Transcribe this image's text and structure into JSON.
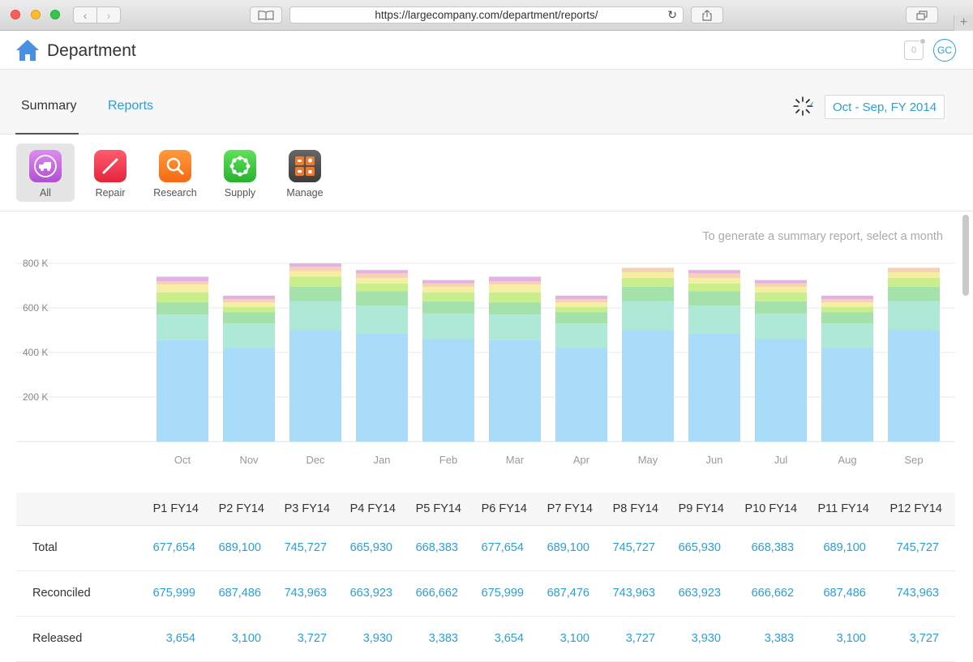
{
  "browser": {
    "url": "https://largecompany.com/department/reports/"
  },
  "app": {
    "title": "Department",
    "notification_count": "0",
    "avatar_initials": "GC"
  },
  "tabs": [
    {
      "label": "Summary",
      "active": true
    },
    {
      "label": "Reports",
      "active": false
    }
  ],
  "period": {
    "label": "Oct - Sep, FY 2014"
  },
  "categories": [
    {
      "label": "All",
      "icon": "truck-icon",
      "color": "#c86bdf",
      "active": true
    },
    {
      "label": "Repair",
      "icon": "wrench-icon",
      "color": "#f0384f",
      "active": false
    },
    {
      "label": "Research",
      "icon": "magnifier-icon",
      "color": "#fb7a23",
      "active": false
    },
    {
      "label": "Supply",
      "icon": "network-icon",
      "color": "#34c13a",
      "active": false
    },
    {
      "label": "Manage",
      "icon": "grid-tiles-icon",
      "color": "#4f4f4f",
      "active": false
    }
  ],
  "hint_text": "To generate a summary report, select a month",
  "chart_data": {
    "type": "bar",
    "stacked": true,
    "categories": [
      "Oct",
      "Nov",
      "Dec",
      "Jan",
      "Feb",
      "Mar",
      "Apr",
      "May",
      "Jun",
      "Jul",
      "Aug",
      "Sep"
    ],
    "yticks": [
      "200 K",
      "400 K",
      "600 K",
      "800 K"
    ],
    "ylim": [
      0,
      800000
    ],
    "grid": true,
    "series": [
      {
        "color": "#a8dcf8",
        "values": [
          455000,
          420000,
          500000,
          485000,
          460000,
          455000,
          420000,
          500000,
          485000,
          460000,
          420000,
          500000
        ]
      },
      {
        "color": "#aee9d8",
        "values": [
          115000,
          110000,
          130000,
          125000,
          115000,
          115000,
          110000,
          130000,
          125000,
          115000,
          110000,
          130000
        ]
      },
      {
        "color": "#a4e1ab",
        "values": [
          55000,
          50000,
          65000,
          65000,
          55000,
          55000,
          50000,
          65000,
          65000,
          55000,
          50000,
          65000
        ]
      },
      {
        "color": "#c9ef8c",
        "values": [
          45000,
          25000,
          45000,
          35000,
          40000,
          45000,
          25000,
          40000,
          35000,
          40000,
          25000,
          40000
        ]
      },
      {
        "color": "#f6efa3",
        "values": [
          35000,
          20000,
          25000,
          25000,
          25000,
          35000,
          20000,
          25000,
          25000,
          25000,
          20000,
          25000
        ]
      },
      {
        "color": "#f5d2b4",
        "values": [
          15000,
          15000,
          20000,
          20000,
          15000,
          15000,
          15000,
          20000,
          20000,
          15000,
          15000,
          20000
        ]
      },
      {
        "color": "#e3b2e3",
        "values": [
          20000,
          15000,
          15000,
          15000,
          15000,
          20000,
          15000,
          0,
          15000,
          15000,
          15000,
          0
        ]
      }
    ]
  },
  "table": {
    "headers": [
      "P1 FY14",
      "P2 FY14",
      "P3 FY14",
      "P4 FY14",
      "P5 FY14",
      "P6 FY14",
      "P7 FY14",
      "P8 FY14",
      "P9 FY14",
      "P10 FY14",
      "P11 FY14",
      "P12 FY14"
    ],
    "rows": [
      {
        "label": "Total",
        "values": [
          "677,654",
          "689,100",
          "745,727",
          "665,930",
          "668,383",
          "677,654",
          "689,100",
          "745,727",
          "665,930",
          "668,383",
          "689,100",
          "745,727"
        ]
      },
      {
        "label": "Reconciled",
        "values": [
          "675,999",
          "687,486",
          "743,963",
          "663,923",
          "666,662",
          "675,999",
          "687,476",
          "743,963",
          "663,923",
          "666,662",
          "687,486",
          "743,963"
        ]
      },
      {
        "label": "Released",
        "values": [
          "3,654",
          "3,100",
          "3,727",
          "3,930",
          "3,383",
          "3,654",
          "3,100",
          "3,727",
          "3,930",
          "3,383",
          "3,100",
          "3,727"
        ]
      }
    ]
  }
}
